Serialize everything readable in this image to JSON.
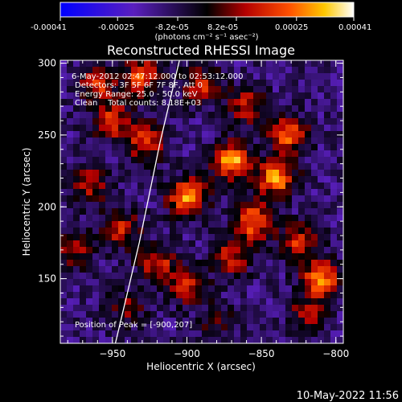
{
  "colorbar": {
    "tick_labels": [
      "-0.00041",
      "-0.00025",
      "-8.2e-05",
      "8.2e-05",
      "0.00025",
      "0.00041"
    ],
    "units_label": "(photons cm⁻² s⁻¹ asec⁻²)",
    "range": [
      -0.00041,
      0.00041
    ]
  },
  "chart_data": {
    "type": "heatmap",
    "title": "Reconstructed RHESSI Image",
    "xlabel": "Heliocentric X (arcsec)",
    "ylabel": "Heliocentric Y (arcsec)",
    "xlim": [
      -985,
      -795
    ],
    "ylim": [
      105,
      302
    ],
    "xticks": [
      -950,
      -900,
      -850,
      -800
    ],
    "yticks": [
      150,
      200,
      250,
      300
    ],
    "annotations": [
      "6-May-2012 02:47:12.000 to 02:53:12.000",
      "Detectors: 3F 5F 6F 7F 8F, Att 0",
      "Energy Range: 25.0 - 50.0 keV",
      "Clean    Total counts: 8.18E+03"
    ],
    "peak_label": "Position of Peak = [-900,207]",
    "peak": [
      -900,
      207
    ],
    "limb": [
      [
        -948,
        105
      ],
      [
        -940,
        140
      ],
      [
        -932,
        175
      ],
      [
        -925,
        210
      ],
      [
        -918,
        245
      ],
      [
        -910,
        280
      ],
      [
        -905,
        302
      ]
    ],
    "hotspots": [
      {
        "x": -870,
        "y": 232,
        "v": 0.0004
      },
      {
        "x": -900,
        "y": 207,
        "v": 0.00038
      },
      {
        "x": -855,
        "y": 190,
        "v": 0.00034
      },
      {
        "x": -840,
        "y": 220,
        "v": 0.00036
      },
      {
        "x": -832,
        "y": 250,
        "v": 0.0003
      },
      {
        "x": -928,
        "y": 245,
        "v": 0.00028
      },
      {
        "x": -950,
        "y": 260,
        "v": 0.00026
      },
      {
        "x": -960,
        "y": 285,
        "v": 0.00024
      },
      {
        "x": -930,
        "y": 290,
        "v": 0.0003
      },
      {
        "x": -965,
        "y": 215,
        "v": 0.00022
      },
      {
        "x": -945,
        "y": 185,
        "v": 0.00025
      },
      {
        "x": -920,
        "y": 160,
        "v": 0.00024
      },
      {
        "x": -900,
        "y": 145,
        "v": 0.00022
      },
      {
        "x": -870,
        "y": 165,
        "v": 0.00023
      },
      {
        "x": -810,
        "y": 150,
        "v": 0.00035
      },
      {
        "x": -825,
        "y": 175,
        "v": 0.00025
      },
      {
        "x": -860,
        "y": 270,
        "v": 0.00022
      },
      {
        "x": -890,
        "y": 285,
        "v": 0.00024
      },
      {
        "x": -975,
        "y": 170,
        "v": 0.00018
      },
      {
        "x": -940,
        "y": 130,
        "v": 0.00015
      },
      {
        "x": -820,
        "y": 125,
        "v": 0.00018
      },
      {
        "x": -880,
        "y": 120,
        "v": 0.00012
      }
    ]
  },
  "timestamp": "10-May-2022 11:56"
}
